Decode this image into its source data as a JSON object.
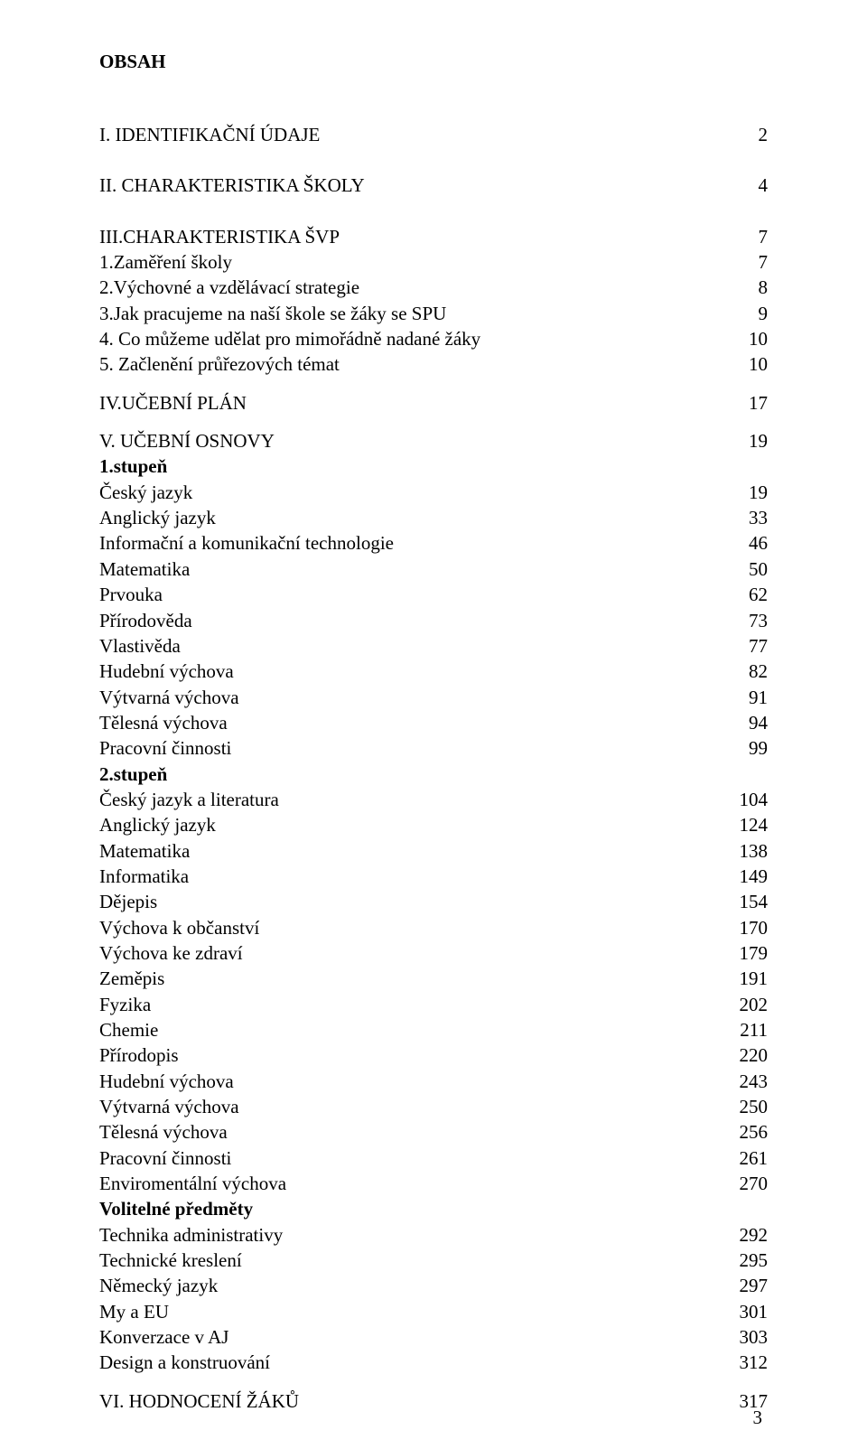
{
  "colors": {
    "bg": "#ffffff",
    "text": "#000000"
  },
  "typography": {
    "font_family": "Times New Roman",
    "heading_fontsize_pt": 16,
    "row_fontsize_pt": 16,
    "line_height": 1.35
  },
  "heading": "OBSAH",
  "page_number": "3",
  "sections": [
    {
      "label": "I. IDENTIFIKAČNÍ ÚDAJE",
      "page": "2",
      "spacer_before": true
    },
    {
      "label": "II. CHARAKTERISTIKA ŠKOLY",
      "page": "4",
      "spacer_before": true
    },
    {
      "label": "III.CHARAKTERISTIKA ŠVP",
      "page": "7",
      "spacer_before": true
    },
    {
      "label": "1.Zaměření školy",
      "page": "7"
    },
    {
      "label": "2.Výchovné a vzdělávací strategie",
      "page": "8"
    },
    {
      "label": "3.Jak pracujeme na naší škole se žáky se SPU",
      "page": "9"
    },
    {
      "label": "4. Co můžeme udělat pro mimořádně nadané žáky",
      "page": "10"
    },
    {
      "label": "5. Začlenění průřezových témat",
      "page": "10"
    },
    {
      "label": "IV.UČEBNÍ PLÁN",
      "page": "17",
      "spacer_before_sm": true
    },
    {
      "label": "V. UČEBNÍ OSNOVY",
      "page": "19",
      "spacer_before_sm": true
    },
    {
      "label": "1.stupeň",
      "bold": true,
      "no_page": true
    },
    {
      "label": "Český jazyk",
      "page": "19"
    },
    {
      "label": "Anglický jazyk",
      "page": "33"
    },
    {
      "label": "Informační a komunikační technologie",
      "page": "46"
    },
    {
      "label": "Matematika",
      "page": "50"
    },
    {
      "label": "Prvouka",
      "page": "62"
    },
    {
      "label": "Přírodověda",
      "page": "73"
    },
    {
      "label": "Vlastivěda",
      "page": "77"
    },
    {
      "label": "Hudební výchova",
      "page": "82"
    },
    {
      "label": "Výtvarná výchova",
      "page": "91"
    },
    {
      "label": "Tělesná výchova",
      "page": "94"
    },
    {
      "label": "Pracovní činnosti",
      "page": "99"
    },
    {
      "label": "2.stupeň",
      "bold": true,
      "no_page": true
    },
    {
      "label": "Český jazyk a literatura",
      "page": "104"
    },
    {
      "label": "Anglický jazyk",
      "page": "124"
    },
    {
      "label": "Matematika",
      "page": "138"
    },
    {
      "label": "Informatika",
      "page": "149"
    },
    {
      "label": "Dějepis",
      "page": "154"
    },
    {
      "label": "Výchova k občanství",
      "page": "170"
    },
    {
      "label": "Výchova ke zdraví",
      "page": "179"
    },
    {
      "label": "Zeměpis",
      "page": "191"
    },
    {
      "label": "Fyzika",
      "page": "202"
    },
    {
      "label": "Chemie",
      "page": "211"
    },
    {
      "label": "Přírodopis",
      "page": "220"
    },
    {
      "label": "Hudební výchova",
      "page": "243"
    },
    {
      "label": "Výtvarná výchova",
      "page": "250"
    },
    {
      "label": "Tělesná výchova",
      "page": "256"
    },
    {
      "label": "Pracovní činnosti",
      "page": "261"
    },
    {
      "label": "Enviromentální výchova",
      "page": "270"
    },
    {
      "label": "Volitelné předměty",
      "bold": true,
      "no_page": true
    },
    {
      "label": "Technika administrativy",
      "page": "292"
    },
    {
      "label": "Technické kreslení",
      "page": "295"
    },
    {
      "label": "Německý jazyk",
      "page": "297"
    },
    {
      "label": "My a EU",
      "page": "301"
    },
    {
      "label": "Konverzace v AJ",
      "page": "303"
    },
    {
      "label": "Design a konstruování",
      "page": "312"
    },
    {
      "label": "VI. HODNOCENÍ ŽÁKŮ",
      "page": "317",
      "spacer_before_sm": true
    }
  ]
}
